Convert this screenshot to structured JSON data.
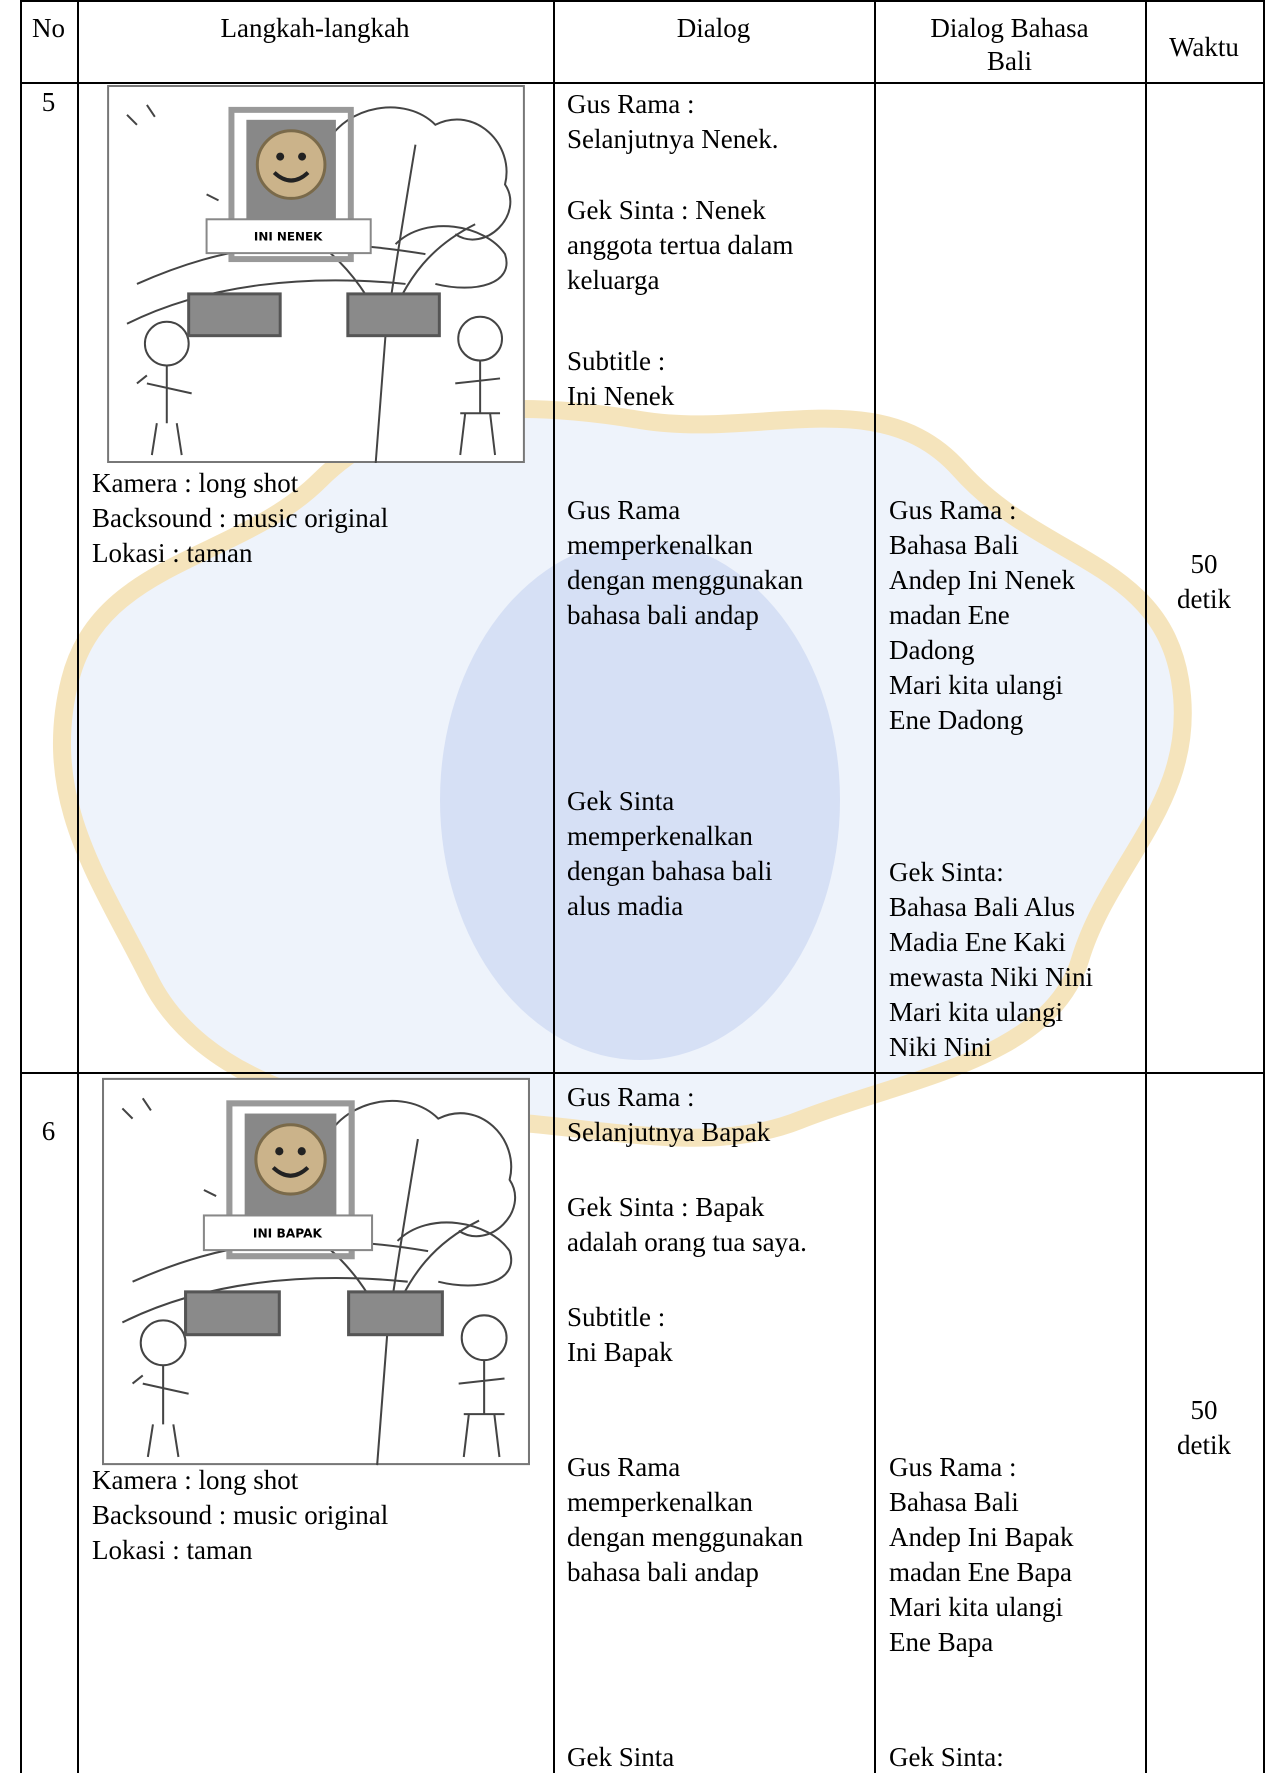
{
  "table": {
    "header": [
      "No",
      "Langkah-langkah",
      "Dialog",
      "Dialog Bahasa\nBali",
      "Waktu"
    ],
    "rows": [
      {
        "no": "5",
        "image_label": "INI NENEK",
        "steps": "Kamera : long shot\nBacksound : music original\nLokasi : taman",
        "dialog": [
          "Gus Rama :\nSelanjutnya Nenek.",
          "Gek Sinta : Nenek\nanggota tertua dalam\nkeluarga",
          "Subtitle :\nIni Nenek",
          "Gus Rama\nmemperkenalkan\ndengan menggunakan\nbahasa bali andap",
          "Gek Sinta\nmemperkenalkan\ndengan bahasa bali\nalus madia"
        ],
        "dialog_bali": [
          "Gus Rama :\nBahasa Bali\nAndep Ini Nenek\nmadan Ene\nDadong\nMari kita ulangi\nEne Dadong",
          "Gek Sinta:\nBahasa Bali Alus\nMadia Ene Kaki\nmewasta Niki Nini\nMari kita ulangi\nNiki Nini"
        ],
        "waktu": "50\ndetik"
      },
      {
        "no": "6",
        "image_label": "INI BAPAK",
        "steps": "Kamera : long shot\nBacksound : music original\nLokasi : taman",
        "dialog": [
          "Gus Rama :\nSelanjutnya Bapak",
          "Gek Sinta : Bapak\nadalah orang tua saya.",
          "Subtitle :\nIni Bapak",
          "Gus Rama\nmemperkenalkan\ndengan menggunakan\nbahasa bali andap",
          "Gek Sinta"
        ],
        "dialog_bali": [
          "Gus Rama :\nBahasa Bali\nAndep Ini Bapak\nmadan Ene Bapa\nMari kita ulangi\nEne Bapa",
          "Gek Sinta:"
        ],
        "waktu": "50\ndetik"
      }
    ]
  }
}
